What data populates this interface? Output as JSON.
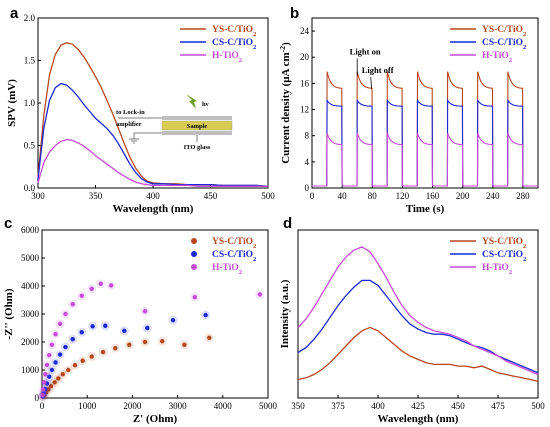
{
  "chart_data": [
    {
      "panel": "a",
      "type": "line",
      "xlabel": "Wavelength (nm)",
      "ylabel": "SPV (mV)",
      "xlim": [
        300,
        500
      ],
      "ylim": [
        0,
        2.0
      ],
      "xticks": [
        300,
        350,
        400,
        450,
        500
      ],
      "yticks": [
        0.0,
        0.5,
        1.0,
        1.5,
        2.0
      ],
      "ytick_labels": [
        "0.0",
        "0.5",
        "1.0",
        "1.5",
        "2.0"
      ],
      "legend": {
        "placement": "top-right",
        "entries": [
          "YS-C/TiO₂",
          "CS-C/TiO₂",
          "H-TiO₂"
        ]
      },
      "series": [
        {
          "name": "YS-C/TiO₂",
          "color": "#b5471f",
          "x": [
            300,
            305,
            310,
            315,
            320,
            325,
            330,
            335,
            340,
            345,
            350,
            355,
            360,
            365,
            370,
            375,
            380,
            385,
            390,
            395,
            400,
            410,
            420,
            430,
            440,
            450,
            460,
            470,
            480,
            490,
            500
          ],
          "y": [
            0.13,
            0.85,
            1.33,
            1.57,
            1.68,
            1.71,
            1.69,
            1.63,
            1.54,
            1.43,
            1.31,
            1.18,
            1.03,
            0.87,
            0.7,
            0.52,
            0.36,
            0.23,
            0.14,
            0.08,
            0.06,
            0.05,
            0.05,
            0.04,
            0.04,
            0.04,
            0.03,
            0.03,
            0.03,
            0.03,
            0.02
          ]
        },
        {
          "name": "CS-C/TiO₂",
          "color": "#1c28d6",
          "x": [
            300,
            305,
            310,
            315,
            320,
            325,
            330,
            335,
            340,
            345,
            350,
            355,
            360,
            365,
            370,
            375,
            380,
            385,
            390,
            395,
            400,
            410,
            420,
            430,
            440,
            450,
            460,
            470,
            480,
            490,
            500
          ],
          "y": [
            0.1,
            0.7,
            1.03,
            1.18,
            1.23,
            1.21,
            1.15,
            1.07,
            0.98,
            0.9,
            0.82,
            0.76,
            0.7,
            0.62,
            0.52,
            0.4,
            0.28,
            0.18,
            0.11,
            0.07,
            0.05,
            0.05,
            0.04,
            0.04,
            0.04,
            0.04,
            0.03,
            0.03,
            0.03,
            0.03,
            0.02
          ]
        },
        {
          "name": "H-TiO₂",
          "color": "#c44cd8",
          "x": [
            300,
            305,
            310,
            315,
            320,
            325,
            330,
            335,
            340,
            345,
            350,
            355,
            360,
            365,
            370,
            375,
            380,
            385,
            390,
            395,
            400,
            410,
            420,
            430,
            440,
            450,
            460,
            470,
            480,
            490,
            500
          ],
          "y": [
            0.06,
            0.3,
            0.42,
            0.5,
            0.55,
            0.57,
            0.56,
            0.53,
            0.49,
            0.44,
            0.38,
            0.33,
            0.28,
            0.23,
            0.18,
            0.14,
            0.1,
            0.07,
            0.05,
            0.04,
            0.03,
            0.03,
            0.03,
            0.03,
            0.02,
            0.02,
            0.02,
            0.02,
            0.02,
            0.02,
            0.02
          ]
        }
      ],
      "inset": {
        "hv": "hν",
        "lockin": "to Lock-in",
        "amplifier": "amplifier",
        "sample": "Sample",
        "ito": "ITO glass"
      }
    },
    {
      "panel": "b",
      "type": "line",
      "xlabel": "Time (s)",
      "ylabel": "Current density (μA cm⁻²)",
      "xlim": [
        0,
        300
      ],
      "ylim": [
        0,
        26
      ],
      "xticks": [
        0,
        40,
        80,
        120,
        160,
        200,
        240,
        280
      ],
      "yticks": [
        0,
        4,
        8,
        12,
        16,
        20,
        24
      ],
      "legend": {
        "placement": "top-right",
        "entries": [
          "YS-C/TiO₂",
          "CS-C/TiO₂",
          "H-TiO₂"
        ]
      },
      "annotations": [
        "Light on",
        "Light off"
      ],
      "light_on_times": [
        20,
        60,
        100,
        140,
        180,
        220,
        260
      ],
      "light_period_s": 20,
      "series": [
        {
          "name": "YS-C/TiO₂",
          "color": "#b5471f",
          "on_peak": 17.8,
          "on_steady": 15.2
        },
        {
          "name": "CS-C/TiO₂",
          "color": "#1c28d6",
          "on_peak": 13.4,
          "on_steady": 12.5
        },
        {
          "name": "H-TiO₂",
          "color": "#c44cd8",
          "on_peak": 8.4,
          "on_steady": 6.6
        }
      ]
    },
    {
      "panel": "c",
      "type": "scatter",
      "xlabel": "Z' (Ohm)",
      "ylabel": "-Z'' (Ohm)",
      "xlim": [
        0,
        5000
      ],
      "ylim": [
        0,
        6000
      ],
      "xticks": [
        0,
        1000,
        2000,
        3000,
        4000,
        5000
      ],
      "yticks": [
        0,
        1000,
        2000,
        3000,
        4000,
        5000,
        6000
      ],
      "legend": {
        "placement": "top-right",
        "entries": [
          "YS-C/TiO₂",
          "CS-C/TiO₂",
          "H-TiO₂"
        ]
      },
      "series": [
        {
          "name": "YS-C/TiO₂",
          "color": "#b5471f",
          "points": [
            [
              20,
              40
            ],
            [
              50,
              110
            ],
            [
              90,
              200
            ],
            [
              140,
              300
            ],
            [
              200,
              420
            ],
            [
              280,
              560
            ],
            [
              360,
              700
            ],
            [
              460,
              850
            ],
            [
              580,
              1000
            ],
            [
              730,
              1170
            ],
            [
              900,
              1330
            ],
            [
              1100,
              1480
            ],
            [
              1350,
              1640
            ],
            [
              1620,
              1780
            ],
            [
              1930,
              1900
            ],
            [
              2280,
              2000
            ],
            [
              2660,
              2030
            ],
            [
              3150,
              1900
            ],
            [
              3700,
              2150
            ]
          ]
        },
        {
          "name": "CS-C/TiO₂",
          "color": "#1c28d6",
          "points": [
            [
              15,
              60
            ],
            [
              40,
              170
            ],
            [
              70,
              320
            ],
            [
              110,
              520
            ],
            [
              160,
              760
            ],
            [
              220,
              1000
            ],
            [
              300,
              1270
            ],
            [
              400,
              1550
            ],
            [
              520,
              1820
            ],
            [
              680,
              2100
            ],
            [
              880,
              2350
            ],
            [
              1120,
              2560
            ],
            [
              1400,
              2580
            ],
            [
              1820,
              2400
            ],
            [
              2330,
              2500
            ],
            [
              2900,
              2780
            ],
            [
              3620,
              2960
            ]
          ]
        },
        {
          "name": "H-TiO₂",
          "color": "#c44cd8",
          "points": [
            [
              10,
              100
            ],
            [
              25,
              300
            ],
            [
              45,
              560
            ],
            [
              75,
              850
            ],
            [
              110,
              1180
            ],
            [
              160,
              1530
            ],
            [
              220,
              1900
            ],
            [
              300,
              2280
            ],
            [
              400,
              2650
            ],
            [
              520,
              3000
            ],
            [
              680,
              3350
            ],
            [
              880,
              3650
            ],
            [
              1100,
              3900
            ],
            [
              1300,
              4080
            ],
            [
              1530,
              4020
            ],
            [
              2280,
              3100
            ],
            [
              3380,
              3600
            ],
            [
              4820,
              3700
            ]
          ]
        }
      ]
    },
    {
      "panel": "d",
      "type": "line",
      "xlabel": "Wavelength (nm)",
      "ylabel": "Intensity (a.u.)",
      "xlim": [
        350,
        500
      ],
      "xticks": [
        350,
        375,
        400,
        425,
        450,
        475,
        500
      ],
      "legend": {
        "placement": "top-right",
        "entries": [
          "YS-C/TiO₂",
          "CS-C/TiO₂",
          "H-TiO₂"
        ]
      },
      "series": [
        {
          "name": "YS-C/TiO₂",
          "color": "#b5471f",
          "x": [
            350,
            355,
            360,
            365,
            370,
            375,
            380,
            385,
            390,
            395,
            400,
            405,
            410,
            415,
            420,
            425,
            430,
            435,
            440,
            445,
            450,
            455,
            460,
            465,
            470,
            475,
            480,
            485,
            490,
            495,
            500
          ],
          "y": [
            0.11,
            0.12,
            0.14,
            0.17,
            0.21,
            0.26,
            0.31,
            0.36,
            0.4,
            0.42,
            0.4,
            0.36,
            0.32,
            0.28,
            0.25,
            0.23,
            0.21,
            0.2,
            0.2,
            0.2,
            0.19,
            0.19,
            0.18,
            0.19,
            0.17,
            0.15,
            0.14,
            0.13,
            0.12,
            0.11,
            0.1
          ]
        },
        {
          "name": "CS-C/TiO₂",
          "color": "#1c28d6",
          "x": [
            350,
            355,
            360,
            365,
            370,
            375,
            380,
            385,
            390,
            395,
            400,
            405,
            410,
            415,
            420,
            425,
            430,
            435,
            440,
            445,
            450,
            455,
            460,
            465,
            470,
            475,
            480,
            485,
            490,
            495,
            500
          ],
          "y": [
            0.27,
            0.3,
            0.35,
            0.41,
            0.48,
            0.55,
            0.61,
            0.66,
            0.7,
            0.7,
            0.67,
            0.61,
            0.55,
            0.49,
            0.44,
            0.41,
            0.39,
            0.38,
            0.38,
            0.37,
            0.35,
            0.33,
            0.31,
            0.3,
            0.28,
            0.25,
            0.23,
            0.21,
            0.19,
            0.17,
            0.15
          ]
        },
        {
          "name": "H-TiO₂",
          "color": "#c44cd8",
          "x": [
            350,
            355,
            360,
            365,
            370,
            375,
            380,
            385,
            390,
            395,
            400,
            405,
            410,
            415,
            420,
            425,
            430,
            435,
            440,
            445,
            450,
            455,
            460,
            465,
            470,
            475,
            480,
            485,
            490,
            495,
            500
          ],
          "y": [
            0.42,
            0.47,
            0.54,
            0.62,
            0.7,
            0.78,
            0.84,
            0.88,
            0.9,
            0.87,
            0.8,
            0.72,
            0.63,
            0.55,
            0.49,
            0.45,
            0.42,
            0.4,
            0.39,
            0.38,
            0.36,
            0.34,
            0.31,
            0.29,
            0.27,
            0.25,
            0.22,
            0.2,
            0.18,
            0.16,
            0.14
          ]
        }
      ]
    }
  ]
}
